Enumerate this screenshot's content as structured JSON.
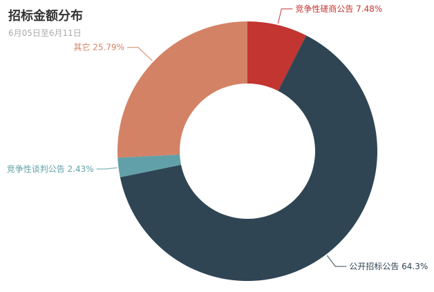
{
  "title": "招标金额分布",
  "subtitle": "6月05日至6月11日",
  "chart_data": {
    "type": "pie",
    "variant": "donut",
    "title": "招标金额分布",
    "subtitle": "6月05日至6月11日",
    "legend": "none",
    "slices": [
      {
        "name": "竞争性磋商公告",
        "value": 7.48,
        "label": "竞争性磋商公告 7.48%",
        "color": "#c23531"
      },
      {
        "name": "公开招标公告",
        "value": 64.3,
        "label": "公开招标公告 64.3%",
        "color": "#2f4554"
      },
      {
        "name": "竞争性谈判公告",
        "value": 2.43,
        "label": "竞争性谈判公告 2.43%",
        "color": "#61a0a8"
      },
      {
        "name": "其它",
        "value": 25.79,
        "label": "其它 25.79%",
        "color": "#d48265"
      }
    ]
  }
}
